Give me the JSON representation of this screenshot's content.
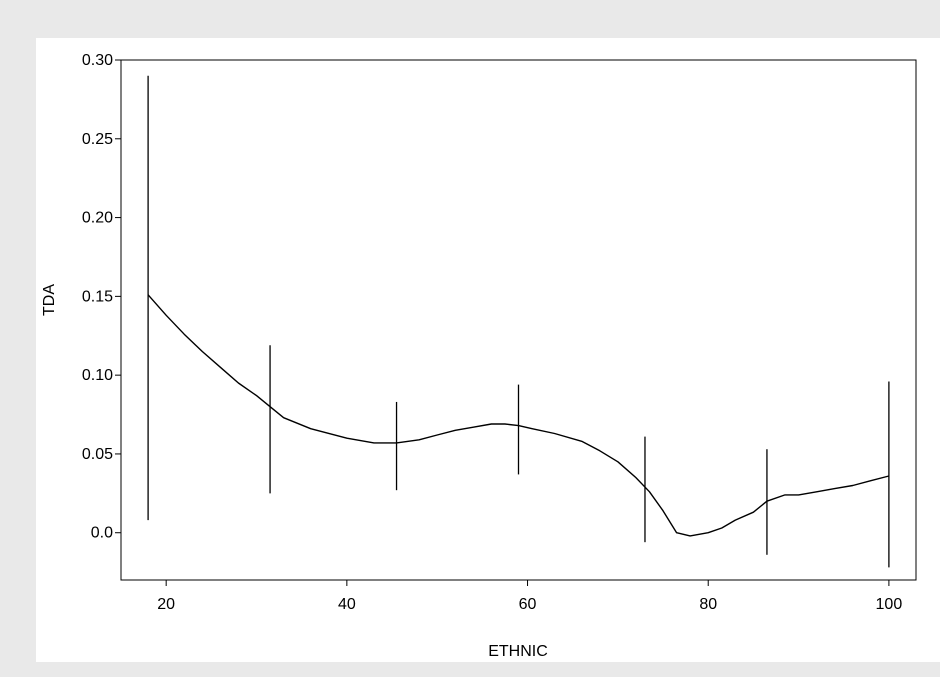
{
  "chart_data": {
    "type": "line",
    "xlabel": "ETHNIC",
    "ylabel": "TDA",
    "xlim": [
      15,
      103
    ],
    "ylim": [
      -0.03,
      0.3
    ],
    "x_ticks": [
      {
        "value": 20,
        "label": "20"
      },
      {
        "value": 40,
        "label": "40"
      },
      {
        "value": 60,
        "label": "60"
      },
      {
        "value": 80,
        "label": "80"
      },
      {
        "value": 100,
        "label": "100"
      }
    ],
    "y_ticks": [
      {
        "value": 0.0,
        "label": "0.0"
      },
      {
        "value": 0.05,
        "label": "0.05"
      },
      {
        "value": 0.1,
        "label": "0.10"
      },
      {
        "value": 0.15,
        "label": "0.15"
      },
      {
        "value": 0.2,
        "label": "0.20"
      },
      {
        "value": 0.25,
        "label": "0.25"
      },
      {
        "value": 0.3,
        "label": "0.30"
      }
    ],
    "grid": false,
    "series": [
      {
        "x": [
          18.0,
          20.0,
          22.0,
          24.0,
          26.0,
          28.0,
          30.0,
          31.5,
          33.0,
          36.0,
          40.0,
          43.0,
          45.5,
          48.0,
          50.0,
          52.0,
          54.0,
          56.0,
          57.5,
          59.0,
          60.5,
          63.0,
          66.0,
          68.0,
          70.0,
          72.0,
          73.5,
          75.0,
          76.5,
          78.0,
          80.0,
          81.5,
          83.0,
          85.0,
          86.5,
          88.5,
          90.0,
          92.0,
          94.0,
          96.0,
          98.0,
          100.0
        ],
        "y": [
          0.151,
          0.138,
          0.126,
          0.115,
          0.105,
          0.095,
          0.087,
          0.08,
          0.073,
          0.066,
          0.06,
          0.057,
          0.057,
          0.059,
          0.062,
          0.065,
          0.067,
          0.069,
          0.069,
          0.068,
          0.066,
          0.063,
          0.058,
          0.052,
          0.045,
          0.035,
          0.026,
          0.014,
          0.0,
          -0.002,
          0.0,
          0.003,
          0.008,
          0.013,
          0.02,
          0.024,
          0.024,
          0.026,
          0.028,
          0.03,
          0.033,
          0.036
        ]
      }
    ],
    "error_bars": [
      {
        "x": 18.0,
        "low": 0.008,
        "high": 0.29
      },
      {
        "x": 31.5,
        "low": 0.025,
        "high": 0.119
      },
      {
        "x": 45.5,
        "low": 0.027,
        "high": 0.083
      },
      {
        "x": 59.0,
        "low": 0.037,
        "high": 0.094
      },
      {
        "x": 73.0,
        "low": -0.006,
        "high": 0.061
      },
      {
        "x": 86.5,
        "low": -0.014,
        "high": 0.053
      },
      {
        "x": 100.0,
        "low": -0.022,
        "high": 0.096
      }
    ]
  }
}
